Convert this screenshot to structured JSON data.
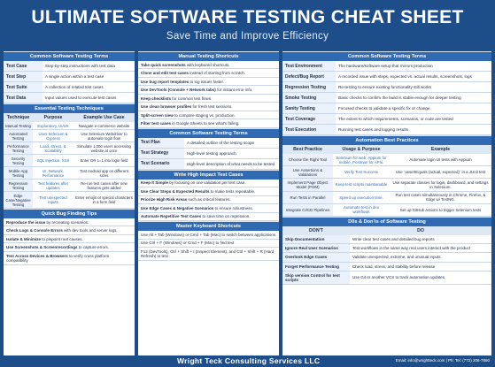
{
  "header": {
    "title": "ULTIMATE SOFTWARE TESTING CHEAT SHEET",
    "subtitle": "Save Time and Improve Efficiency"
  },
  "footer": {
    "brand": "Wright Teck Consulting Services LLC",
    "contact": "Email: info@wrightteck.com | Ph: Tel: (772) 206-7860"
  },
  "col1": {
    "terms_title": "Common Software Testing Terms",
    "terms": [
      {
        "k": "Test Case",
        "v": "Step-by-step instructions with test data"
      },
      {
        "k": "Test Step",
        "v": "A single action within a test case"
      },
      {
        "k": "Test Suite",
        "v": "A collection of related test cases"
      },
      {
        "k": "Test Data",
        "v": "Input values used to execute test cases"
      }
    ],
    "tech_title": "Essential Testing Techniques",
    "tech_headers": [
      "Technique",
      "Purpose",
      "Example Use Case"
    ],
    "techniques": [
      {
        "t": "Manual Testing",
        "p": "Exploratory, UI/UX",
        "e": "Navigate e-commerce website"
      },
      {
        "t": "Automated Testing",
        "p": "Uses Selenium & Cypress",
        "e": "Use Selenium Webdriver to automate login flow"
      },
      {
        "t": "Performance Testing",
        "p": "Load, Stress, & Scalability",
        "e": "Simulate 1,000 users accessing website at once"
      },
      {
        "t": "Security Testing",
        "p": "SQL Injection, XSS",
        "e": "Enter OR 1=1 into login field"
      },
      {
        "t": "Mobile App Testing",
        "p": "UI, Network, Performance",
        "e": "Test Android app on different sizes"
      },
      {
        "t": "Regression Testing",
        "p": "Test features after updates",
        "e": "Re-run test cases after new features gets added"
      },
      {
        "t": "Edge Case/Negative Testing",
        "p": "Test unexpected inputs",
        "e": "Enter emojis or special characters in a form field"
      }
    ],
    "bug_title": "Quick Bug Finding Tips",
    "bug_tips": [
      {
        "b": "Reproduce the issue",
        "r": " by recreating scenarios."
      },
      {
        "b": "Check Logs & Console Errors",
        "r": " with dev tools and server logs."
      },
      {
        "b": "Isolate & Minimize",
        "r": " to pinpoint root causes."
      },
      {
        "b": "Use Screenshots & Screenrecordings",
        "r": " to capture errors."
      },
      {
        "b": "Test Across Devices & Browsers",
        "r": " to verify cross platform compatibility"
      }
    ]
  },
  "col2": {
    "shortcuts_title": "Manual Testing Shortcuts",
    "shortcuts": [
      {
        "b": "Take quick screenshots",
        "r": " with keyboard shortcuts."
      },
      {
        "b": "Clone and edit test cases",
        "r": " instead of starting from scratch."
      },
      {
        "b": "Use bug report templates",
        "r": " to log issues faster."
      },
      {
        "b": "Use DevTools (Console + Network tabs)",
        "r": " for instant error info."
      },
      {
        "b": "Keep checklists",
        "r": " for common test flows."
      },
      {
        "b": "Use clean browser profiles",
        "r": " for fresh test sessions."
      },
      {
        "b": "Split-screen view",
        "r": " to compare staging vs. production."
      },
      {
        "b": "Filter test cases",
        "r": " in Google Sheets to see what's failing."
      }
    ],
    "terms_title": "Common Software Testing Terms",
    "terms": [
      {
        "k": "Test Plan",
        "v": "A detailed outline of the testing scope"
      },
      {
        "k": "Test Strategy",
        "v": "High-level testing approach"
      },
      {
        "k": "Test Scenario",
        "v": "High-level description of what needs to be tested"
      }
    ],
    "impact_title": "Write High Impact Test Cases",
    "impact": [
      {
        "b": "Keep It Simple",
        "r": " by focusing on one validation per test case."
      },
      {
        "b": "Use Clear Steps & Expected Results",
        "r": " to make tests repeatable."
      },
      {
        "b": "Priorize High Risk Areas",
        "r": " such as critical features."
      },
      {
        "b": "Use Edge Cases & Negative Scenarios",
        "r": " to ensure robustness."
      },
      {
        "b": "Automate Repetitive Test Cases",
        "r": " to save time on regression."
      }
    ],
    "keys_title": "Master Keyboard Shortcuts",
    "keys": [
      "Use Alt + Tab (Windows) or Cmd + Tab (Mac) to switch between applications",
      "Use Ctrl + F (Windows) or Cmd + F (Mac) to find text",
      "F12 (DevTools), Ctrl + Shift + I (Inspect Element), and Ctrl + Shift + R (Hard Refresh) to test"
    ]
  },
  "col3": {
    "terms_title": "Common Software Testing Terms",
    "terms": [
      {
        "k": "Test Environment",
        "v": "The hardware/software setup that mirrors production"
      },
      {
        "k": "Defect/Bug Report",
        "v": "A recorded issue with steps, expected vs. actual results, screenshots, logs"
      },
      {
        "k": "Regression Testing",
        "v": "Re-testing to ensure existing functionality still works"
      },
      {
        "k": "Smoke Testing",
        "v": "Basic checks to confirm the build is stable enough for deeper testing"
      },
      {
        "k": "Sanity Testing",
        "v": "Focused checks to validate a specific fix or change"
      },
      {
        "k": "Test Coverage",
        "v": "The extent to which requirements, scenarios, or code are tested"
      },
      {
        "k": "Test Execution",
        "v": "Running test cases and logging results"
      }
    ],
    "bp_title": "Automation Best Practices",
    "bp_headers": [
      "Best Practice",
      "Usage & Purpose",
      "Example"
    ],
    "bp": [
      {
        "a": "Choose the Right Tool",
        "b": "Selenium for web, Appium for mobile, Postman for APIs.",
        "c": "Automate login UI tests with Appium"
      },
      {
        "a": "Use Assertions & Validations",
        "b": "Verify Test Success",
        "c": "Use `assertEquals (actual, expected)` in a JUnit test"
      },
      {
        "a": "Implement Page Object Model (POM)",
        "b": "Keep test scripts maintainable",
        "c": "Use separate classes for login, dashboard, and settings in Selenium."
      },
      {
        "a": "Run Tests in Parallel",
        "b": "Speed up execution time.",
        "c": "Run test cases simultaneously in Chrome, Firefox, & Edge w/ TestNG."
      },
      {
        "a": "Integrate CI/CD Pipelines",
        "b": "Automate test in dev workflows",
        "c": "Set up GitHub Actions to trigger Selenium tests"
      }
    ],
    "dd_title": "D0s & Don'ts of Software Testing",
    "dd_headers": [
      "DON'T",
      "DO"
    ],
    "dd": [
      {
        "a": "Skip Documentation",
        "b": "Write clear test cases and detailed bug reports"
      },
      {
        "a": "Ignore Real User Scenarios",
        "b": "Test workflows in the same way real users interact with the product"
      },
      {
        "a": "Overlook Edge Cases",
        "b": "Validate unexpected, extreme, and unusual inputs"
      },
      {
        "a": "Forget Performance Testing",
        "b": "Check load, stress, and stability before release"
      },
      {
        "a": "Skip version Control for test scripts",
        "b": "Use Git or another VCS to track automation updates"
      }
    ]
  }
}
